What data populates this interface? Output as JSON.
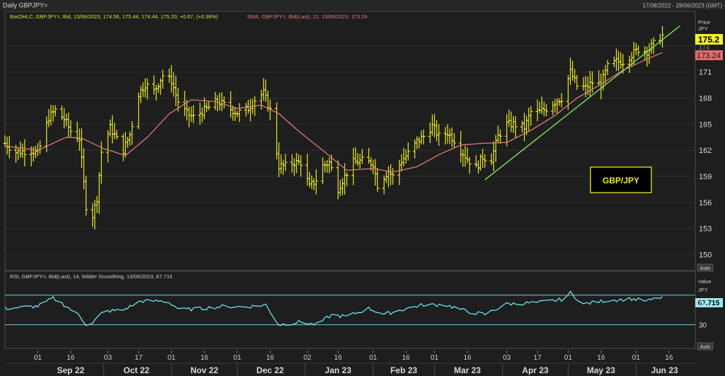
{
  "window": {
    "title": "Daily GBPJPY=",
    "date_range": "17/08/2022 - 28/06/2023 (GMT)"
  },
  "price_panel": {
    "legend_ohlc": "BarOHLC, GBPJPY=, Bid, 13/06/2023, 174.56, 175.44, 174.44, 175.20, +0.67, (+0.38%)",
    "legend_sma": "SMA, GBPJPY=, Bid(Last), 21, 13/06/2023, 173.24",
    "axis_title": "Price",
    "axis_unit": "JPY",
    "last_price_label": "175.2",
    "sma_label": "173.24",
    "hidden_tick_label": "174",
    "auto_label": "Auto",
    "annotation": "GBP/JPY"
  },
  "rsi_panel": {
    "legend": "RSI, GBPJPY=, Bid(Last), 14, Wilder Smoothing, 13/06/2023, 67.715",
    "axis_title": "Value",
    "axis_unit": "JPY",
    "value_label": "67.715",
    "auto_label": "Auto"
  },
  "colors": {
    "background": "#1e1e1e",
    "grid": "#2f2f2f",
    "bars": "#e8e82a",
    "sma": "#e07a78",
    "trendline": "#7fe35a",
    "rsi": "#6ee0e8",
    "rsi_bands": "#6fcfd6",
    "price_tag_bg": "#f4ef2a",
    "sma_tag_bg": "#e06a6a",
    "rsi_tag_bg": "#9be6ee"
  },
  "chart_data": [
    {
      "type": "ohlc-bar",
      "title": "Daily GBPJPY=",
      "series": [
        {
          "name": "BarOHLC",
          "anchors": [
            {
              "date": "2022-08-17",
              "close": 162.8
            },
            {
              "date": "2022-08-22",
              "close": 161.8
            },
            {
              "date": "2022-08-29",
              "close": 162.0
            },
            {
              "date": "2022-09-01",
              "close": 161.6
            },
            {
              "date": "2022-09-06",
              "close": 165.8
            },
            {
              "date": "2022-09-09",
              "close": 166.6
            },
            {
              "date": "2022-09-13",
              "close": 165.6
            },
            {
              "date": "2022-09-16",
              "close": 164.2
            },
            {
              "date": "2022-09-20",
              "close": 163.4
            },
            {
              "date": "2022-09-23",
              "close": 155.6
            },
            {
              "date": "2022-09-26",
              "close": 154.5
            },
            {
              "date": "2022-09-28",
              "close": 156.5
            },
            {
              "date": "2022-09-30",
              "close": 161.8
            },
            {
              "date": "2022-10-04",
              "close": 164.6
            },
            {
              "date": "2022-10-10",
              "close": 162.0
            },
            {
              "date": "2022-10-13",
              "close": 163.8
            },
            {
              "date": "2022-10-17",
              "close": 168.5
            },
            {
              "date": "2022-10-20",
              "close": 169.6
            },
            {
              "date": "2022-10-24",
              "close": 168.8
            },
            {
              "date": "2022-10-28",
              "close": 170.6
            },
            {
              "date": "2022-11-01",
              "close": 170.0
            },
            {
              "date": "2022-11-04",
              "close": 167.6
            },
            {
              "date": "2022-11-08",
              "close": 166.2
            },
            {
              "date": "2022-11-11",
              "close": 165.8
            },
            {
              "date": "2022-11-16",
              "close": 166.6
            },
            {
              "date": "2022-11-22",
              "close": 167.6
            },
            {
              "date": "2022-11-25",
              "close": 167.2
            },
            {
              "date": "2022-12-01",
              "close": 166.3
            },
            {
              "date": "2022-12-06",
              "close": 166.8
            },
            {
              "date": "2022-12-09",
              "close": 167.8
            },
            {
              "date": "2022-12-13",
              "close": 168.6
            },
            {
              "date": "2022-12-16",
              "close": 166.6
            },
            {
              "date": "2022-12-20",
              "close": 160.2
            },
            {
              "date": "2022-12-23",
              "close": 160.2
            },
            {
              "date": "2022-12-27",
              "close": 160.6
            },
            {
              "date": "2022-12-30",
              "close": 160.6
            },
            {
              "date": "2023-01-03",
              "close": 157.8
            },
            {
              "date": "2023-01-06",
              "close": 158.6
            },
            {
              "date": "2023-01-09",
              "close": 160.2
            },
            {
              "date": "2023-01-12",
              "close": 160.6
            },
            {
              "date": "2023-01-16",
              "close": 157.6
            },
            {
              "date": "2023-01-19",
              "close": 159.0
            },
            {
              "date": "2023-01-23",
              "close": 160.6
            },
            {
              "date": "2023-01-27",
              "close": 160.8
            },
            {
              "date": "2023-02-01",
              "close": 160.5
            },
            {
              "date": "2023-02-03",
              "close": 158.0
            },
            {
              "date": "2023-02-08",
              "close": 159.6
            },
            {
              "date": "2023-02-10",
              "close": 159.0
            },
            {
              "date": "2023-02-14",
              "close": 160.8
            },
            {
              "date": "2023-02-17",
              "close": 161.6
            },
            {
              "date": "2023-02-21",
              "close": 163.0
            },
            {
              "date": "2023-02-24",
              "close": 163.6
            },
            {
              "date": "2023-02-28",
              "close": 164.8
            },
            {
              "date": "2023-03-03",
              "close": 163.6
            },
            {
              "date": "2023-03-07",
              "close": 164.0
            },
            {
              "date": "2023-03-10",
              "close": 163.2
            },
            {
              "date": "2023-03-13",
              "close": 162.0
            },
            {
              "date": "2023-03-16",
              "close": 161.0
            },
            {
              "date": "2023-03-20",
              "close": 160.0
            },
            {
              "date": "2023-03-23",
              "close": 161.2
            },
            {
              "date": "2023-03-27",
              "close": 161.0
            },
            {
              "date": "2023-03-30",
              "close": 163.6
            },
            {
              "date": "2023-04-03",
              "close": 165.0
            },
            {
              "date": "2023-04-06",
              "close": 165.0
            },
            {
              "date": "2023-04-11",
              "close": 164.6
            },
            {
              "date": "2023-04-14",
              "close": 166.4
            },
            {
              "date": "2023-04-18",
              "close": 166.4
            },
            {
              "date": "2023-04-21",
              "close": 166.8
            },
            {
              "date": "2023-04-25",
              "close": 167.6
            },
            {
              "date": "2023-04-28",
              "close": 168.0
            },
            {
              "date": "2023-05-02",
              "close": 171.0
            },
            {
              "date": "2023-05-05",
              "close": 169.4
            },
            {
              "date": "2023-05-09",
              "close": 169.2
            },
            {
              "date": "2023-05-12",
              "close": 169.8
            },
            {
              "date": "2023-05-16",
              "close": 169.6
            },
            {
              "date": "2023-05-19",
              "close": 171.6
            },
            {
              "date": "2023-05-23",
              "close": 172.2
            },
            {
              "date": "2023-05-26",
              "close": 172.2
            },
            {
              "date": "2023-05-30",
              "close": 173.0
            },
            {
              "date": "2023-06-02",
              "close": 173.6
            },
            {
              "date": "2023-06-06",
              "close": 173.4
            },
            {
              "date": "2023-06-09",
              "close": 174.2
            },
            {
              "date": "2023-06-13",
              "close": 175.2
            }
          ]
        },
        {
          "name": "SMA 21",
          "points": [
            {
              "date": "2022-08-17",
              "value": 162.5
            },
            {
              "date": "2022-09-01",
              "value": 162.0
            },
            {
              "date": "2022-09-14",
              "value": 163.5
            },
            {
              "date": "2022-09-21",
              "value": 163.4
            },
            {
              "date": "2022-10-01",
              "value": 162.2
            },
            {
              "date": "2022-10-11",
              "value": 161.4
            },
            {
              "date": "2022-10-21",
              "value": 163.5
            },
            {
              "date": "2022-10-31",
              "value": 166.2
            },
            {
              "date": "2022-11-10",
              "value": 167.8
            },
            {
              "date": "2022-11-21",
              "value": 167.6
            },
            {
              "date": "2022-12-01",
              "value": 166.8
            },
            {
              "date": "2022-12-12",
              "value": 167.2
            },
            {
              "date": "2022-12-20",
              "value": 166.2
            },
            {
              "date": "2022-12-29",
              "value": 164.2
            },
            {
              "date": "2023-01-09",
              "value": 162.0
            },
            {
              "date": "2023-01-20",
              "value": 159.7
            },
            {
              "date": "2023-02-01",
              "value": 159.9
            },
            {
              "date": "2023-02-10",
              "value": 159.5
            },
            {
              "date": "2023-02-21",
              "value": 160.1
            },
            {
              "date": "2023-03-03",
              "value": 161.5
            },
            {
              "date": "2023-03-13",
              "value": 162.6
            },
            {
              "date": "2023-03-23",
              "value": 162.8
            },
            {
              "date": "2023-04-03",
              "value": 162.9
            },
            {
              "date": "2023-04-14",
              "value": 164.3
            },
            {
              "date": "2023-04-25",
              "value": 166.0
            },
            {
              "date": "2023-05-05",
              "value": 168.0
            },
            {
              "date": "2023-05-16",
              "value": 169.6
            },
            {
              "date": "2023-05-26",
              "value": 171.2
            },
            {
              "date": "2023-06-06",
              "value": 172.5
            },
            {
              "date": "2023-06-13",
              "value": 173.24
            }
          ]
        },
        {
          "name": "Trend line",
          "points": [
            {
              "date": "2023-03-24",
              "value": 158.6
            },
            {
              "date": "2023-06-21",
              "value": 176.3
            }
          ]
        }
      ],
      "yticks": [
        150,
        153,
        156,
        159,
        162,
        165,
        168,
        171,
        174
      ],
      "ylim": [
        148.5,
        177.0
      ],
      "xlim": [
        "2022-08-17",
        "2023-06-28"
      ],
      "ylabel": "Price JPY"
    },
    {
      "type": "line",
      "title": "RSI, GBPJPY=, Bid(Last), 14, Wilder Smoothing",
      "series": [
        {
          "name": "RSI",
          "points": [
            {
              "date": "2022-08-17",
              "value": 52
            },
            {
              "date": "2022-09-01",
              "value": 55
            },
            {
              "date": "2022-09-08",
              "value": 66
            },
            {
              "date": "2022-09-14",
              "value": 55
            },
            {
              "date": "2022-09-20",
              "value": 42
            },
            {
              "date": "2022-09-24",
              "value": 27
            },
            {
              "date": "2022-10-01",
              "value": 48
            },
            {
              "date": "2022-10-10",
              "value": 50
            },
            {
              "date": "2022-10-18",
              "value": 62
            },
            {
              "date": "2022-10-30",
              "value": 62
            },
            {
              "date": "2022-11-05",
              "value": 50
            },
            {
              "date": "2022-11-15",
              "value": 52
            },
            {
              "date": "2022-11-25",
              "value": 55
            },
            {
              "date": "2022-12-05",
              "value": 54
            },
            {
              "date": "2022-12-14",
              "value": 57
            },
            {
              "date": "2022-12-20",
              "value": 30
            },
            {
              "date": "2022-12-30",
              "value": 34
            },
            {
              "date": "2023-01-06",
              "value": 30
            },
            {
              "date": "2023-01-13",
              "value": 43
            },
            {
              "date": "2023-01-20",
              "value": 41
            },
            {
              "date": "2023-01-30",
              "value": 52
            },
            {
              "date": "2023-02-06",
              "value": 44
            },
            {
              "date": "2023-02-15",
              "value": 51
            },
            {
              "date": "2023-02-24",
              "value": 57
            },
            {
              "date": "2023-03-06",
              "value": 57
            },
            {
              "date": "2023-03-16",
              "value": 48
            },
            {
              "date": "2023-03-24",
              "value": 44
            },
            {
              "date": "2023-04-03",
              "value": 58
            },
            {
              "date": "2023-04-17",
              "value": 60
            },
            {
              "date": "2023-04-28",
              "value": 64
            },
            {
              "date": "2023-05-02",
              "value": 73
            },
            {
              "date": "2023-05-08",
              "value": 58
            },
            {
              "date": "2023-05-19",
              "value": 63
            },
            {
              "date": "2023-05-30",
              "value": 65
            },
            {
              "date": "2023-06-06",
              "value": 62
            },
            {
              "date": "2023-06-13",
              "value": 67.715
            }
          ]
        }
      ],
      "bands": [
        30,
        70
      ],
      "yticks": [
        30,
        60
      ],
      "ylim": [
        0,
        88
      ],
      "xlim": [
        "2022-08-17",
        "2023-06-28"
      ],
      "ylabel": "Value JPY"
    }
  ],
  "x_axis": {
    "day_ticks": [
      {
        "date": "2022-09-01",
        "label": "01"
      },
      {
        "date": "2022-09-16",
        "label": "16"
      },
      {
        "date": "2022-10-03",
        "label": "03"
      },
      {
        "date": "2022-10-17",
        "label": "17"
      },
      {
        "date": "2022-11-01",
        "label": "01"
      },
      {
        "date": "2022-11-16",
        "label": "16"
      },
      {
        "date": "2022-12-01",
        "label": "01"
      },
      {
        "date": "2022-12-16",
        "label": "16"
      },
      {
        "date": "2023-01-02",
        "label": "02"
      },
      {
        "date": "2023-01-16",
        "label": "16"
      },
      {
        "date": "2023-02-01",
        "label": "01"
      },
      {
        "date": "2023-02-16",
        "label": "16"
      },
      {
        "date": "2023-03-01",
        "label": "01"
      },
      {
        "date": "2023-03-16",
        "label": "16"
      },
      {
        "date": "2023-04-03",
        "label": "03"
      },
      {
        "date": "2023-04-17",
        "label": "17"
      },
      {
        "date": "2023-05-01",
        "label": "01"
      },
      {
        "date": "2023-05-16",
        "label": "16"
      },
      {
        "date": "2023-06-01",
        "label": "01"
      },
      {
        "date": "2023-06-16",
        "label": "16"
      }
    ],
    "months": [
      {
        "date": "2022-09-16",
        "label": "Sep 22"
      },
      {
        "date": "2022-10-16",
        "label": "Oct 22"
      },
      {
        "date": "2022-11-16",
        "label": "Nov 22"
      },
      {
        "date": "2022-12-16",
        "label": "Dec 22"
      },
      {
        "date": "2023-01-16",
        "label": "Jan 23"
      },
      {
        "date": "2023-02-15",
        "label": "Feb 23"
      },
      {
        "date": "2023-03-16",
        "label": "Mar 23"
      },
      {
        "date": "2023-04-16",
        "label": "Apr 23"
      },
      {
        "date": "2023-05-16",
        "label": "May 23"
      },
      {
        "date": "2023-06-14",
        "label": "Jun 23"
      }
    ],
    "separators": [
      "2022-10-01",
      "2022-11-01",
      "2022-12-01",
      "2023-01-01",
      "2023-02-01",
      "2023-03-01",
      "2023-04-01",
      "2023-05-01",
      "2023-06-01"
    ]
  }
}
